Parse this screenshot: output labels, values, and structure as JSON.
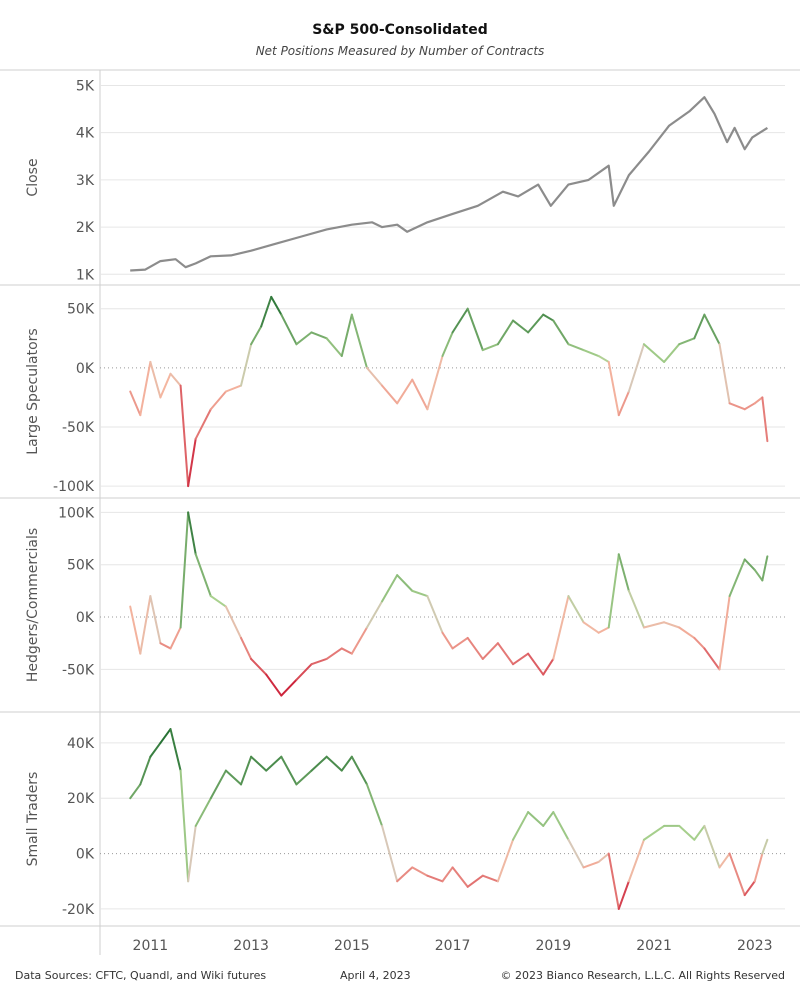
{
  "header": {
    "title": "S&P 500-Consolidated",
    "subtitle": "Net Positions Measured by Number of Contracts"
  },
  "footer": {
    "sources": "Data Sources: CFTC, Quandl, and Wiki futures",
    "date": "April 4, 2023",
    "copyright": "© 2023 Bianco Research, L.L.C. All Rights Reserved"
  },
  "colors": {
    "close_line": "#8c8c8c",
    "positive_dark": "#1e6b2e",
    "positive_light": "#a9d18e",
    "neutral": "#d8c8b8",
    "negative_light": "#f4b6a0",
    "negative_dark": "#c8102e",
    "gridline": "#e6e6e6",
    "zero_line": "#999999"
  },
  "chart_data": [
    {
      "type": "line",
      "name": "close",
      "ylabel": "Close",
      "yticks": [
        1000,
        2000,
        3000,
        4000,
        5000
      ],
      "ytick_labels": [
        "1K",
        "2K",
        "3K",
        "4K",
        "5K"
      ],
      "ylim": [
        900,
        5200
      ],
      "color_mode": "solid",
      "x": [
        2010.6,
        2010.9,
        2011.2,
        2011.5,
        2011.7,
        2011.9,
        2012.2,
        2012.6,
        2013.0,
        2013.5,
        2014.0,
        2014.5,
        2015.0,
        2015.4,
        2015.6,
        2015.9,
        2016.1,
        2016.5,
        2017.0,
        2017.5,
        2018.0,
        2018.3,
        2018.7,
        2018.95,
        2019.3,
        2019.7,
        2020.1,
        2020.2,
        2020.5,
        2020.9,
        2021.3,
        2021.7,
        2022.0,
        2022.2,
        2022.45,
        2022.6,
        2022.8,
        2022.95,
        2023.1,
        2023.25
      ],
      "y": [
        1080,
        1100,
        1280,
        1320,
        1150,
        1230,
        1380,
        1400,
        1500,
        1650,
        1800,
        1950,
        2050,
        2100,
        2000,
        2050,
        1900,
        2100,
        2280,
        2450,
        2750,
        2650,
        2900,
        2450,
        2900,
        3000,
        3300,
        2450,
        3100,
        3600,
        4150,
        4450,
        4750,
        4400,
        3800,
        4100,
        3650,
        3900,
        4000,
        4100
      ]
    },
    {
      "type": "line",
      "name": "large_speculators",
      "ylabel": "Large Speculators",
      "yticks": [
        -100000,
        -50000,
        0,
        50000
      ],
      "ytick_labels": [
        "-100K",
        "-50K",
        "0K",
        "50K"
      ],
      "ylim": [
        -105000,
        65000
      ],
      "color_mode": "diverging",
      "x": [
        2010.6,
        2010.8,
        2011.0,
        2011.2,
        2011.4,
        2011.6,
        2011.75,
        2011.9,
        2012.2,
        2012.5,
        2012.8,
        2013.0,
        2013.2,
        2013.4,
        2013.6,
        2013.9,
        2014.2,
        2014.5,
        2014.8,
        2015.0,
        2015.3,
        2015.6,
        2015.9,
        2016.2,
        2016.5,
        2016.8,
        2017.0,
        2017.3,
        2017.6,
        2017.9,
        2018.2,
        2018.5,
        2018.8,
        2019.0,
        2019.3,
        2019.6,
        2019.9,
        2020.1,
        2020.3,
        2020.5,
        2020.8,
        2021.2,
        2021.5,
        2021.8,
        2022.0,
        2022.3,
        2022.5,
        2022.8,
        2023.0,
        2023.15,
        2023.25
      ],
      "y": [
        -20000,
        -40000,
        5000,
        -25000,
        -5000,
        -15000,
        -100000,
        -60000,
        -35000,
        -20000,
        -15000,
        20000,
        35000,
        60000,
        45000,
        20000,
        30000,
        25000,
        10000,
        45000,
        0,
        -15000,
        -30000,
        -10000,
        -35000,
        10000,
        30000,
        50000,
        15000,
        20000,
        40000,
        30000,
        45000,
        40000,
        20000,
        15000,
        10000,
        5000,
        -40000,
        -20000,
        20000,
        5000,
        20000,
        25000,
        45000,
        20000,
        -30000,
        -35000,
        -30000,
        -25000,
        -62000
      ]
    },
    {
      "type": "line",
      "name": "hedgers_commercials",
      "ylabel": "Hedgers/Commercials",
      "yticks": [
        -50000,
        0,
        50000,
        100000
      ],
      "ytick_labels": [
        "-50K",
        "0K",
        "50K",
        "100K"
      ],
      "ylim": [
        -85000,
        108000
      ],
      "color_mode": "diverging",
      "x": [
        2010.6,
        2010.8,
        2011.0,
        2011.2,
        2011.4,
        2011.6,
        2011.75,
        2011.9,
        2012.2,
        2012.5,
        2012.8,
        2013.0,
        2013.3,
        2013.6,
        2013.9,
        2014.2,
        2014.5,
        2014.8,
        2015.0,
        2015.3,
        2015.6,
        2015.9,
        2016.2,
        2016.5,
        2016.8,
        2017.0,
        2017.3,
        2017.6,
        2017.9,
        2018.2,
        2018.5,
        2018.8,
        2019.0,
        2019.3,
        2019.6,
        2019.9,
        2020.1,
        2020.3,
        2020.5,
        2020.8,
        2021.2,
        2021.5,
        2021.8,
        2022.0,
        2022.3,
        2022.5,
        2022.8,
        2023.0,
        2023.15,
        2023.25
      ],
      "y": [
        10000,
        -35000,
        20000,
        -25000,
        -30000,
        -10000,
        100000,
        60000,
        20000,
        10000,
        -20000,
        -40000,
        -55000,
        -75000,
        -60000,
        -45000,
        -40000,
        -30000,
        -35000,
        -10000,
        15000,
        40000,
        25000,
        20000,
        -15000,
        -30000,
        -20000,
        -40000,
        -25000,
        -45000,
        -35000,
        -55000,
        -40000,
        20000,
        -5000,
        -15000,
        -10000,
        60000,
        25000,
        -10000,
        -5000,
        -10000,
        -20000,
        -30000,
        -50000,
        20000,
        55000,
        45000,
        35000,
        58000
      ]
    },
    {
      "type": "line",
      "name": "small_traders",
      "ylabel": "Small Traders",
      "yticks": [
        -20000,
        0,
        20000,
        40000
      ],
      "ytick_labels": [
        "-20K",
        "0K",
        "20K",
        "40K"
      ],
      "ylim": [
        -24000,
        49000
      ],
      "color_mode": "diverging",
      "x": [
        2010.6,
        2010.8,
        2011.0,
        2011.2,
        2011.4,
        2011.6,
        2011.75,
        2011.9,
        2012.2,
        2012.5,
        2012.8,
        2013.0,
        2013.3,
        2013.6,
        2013.9,
        2014.2,
        2014.5,
        2014.8,
        2015.0,
        2015.3,
        2015.6,
        2015.9,
        2016.2,
        2016.5,
        2016.8,
        2017.0,
        2017.3,
        2017.6,
        2017.9,
        2018.2,
        2018.5,
        2018.8,
        2019.0,
        2019.3,
        2019.6,
        2019.9,
        2020.1,
        2020.3,
        2020.5,
        2020.8,
        2021.2,
        2021.5,
        2021.8,
        2022.0,
        2022.3,
        2022.5,
        2022.8,
        2023.0,
        2023.15,
        2023.25
      ],
      "y": [
        20000,
        25000,
        35000,
        40000,
        45000,
        30000,
        -10000,
        10000,
        20000,
        30000,
        25000,
        35000,
        30000,
        35000,
        25000,
        30000,
        35000,
        30000,
        35000,
        25000,
        10000,
        -10000,
        -5000,
        -8000,
        -10000,
        -5000,
        -12000,
        -8000,
        -10000,
        5000,
        15000,
        10000,
        15000,
        5000,
        -5000,
        -3000,
        0,
        -20000,
        -10000,
        5000,
        10000,
        10000,
        5000,
        10000,
        -5000,
        0,
        -15000,
        -10000,
        0,
        5000
      ]
    }
  ],
  "x_axis": {
    "range": [
      2010.0,
      2023.6
    ],
    "ticks": [
      2011,
      2013,
      2015,
      2017,
      2019,
      2021,
      2023
    ],
    "tick_labels": [
      "2011",
      "2013",
      "2015",
      "2017",
      "2019",
      "2021",
      "2023"
    ]
  }
}
